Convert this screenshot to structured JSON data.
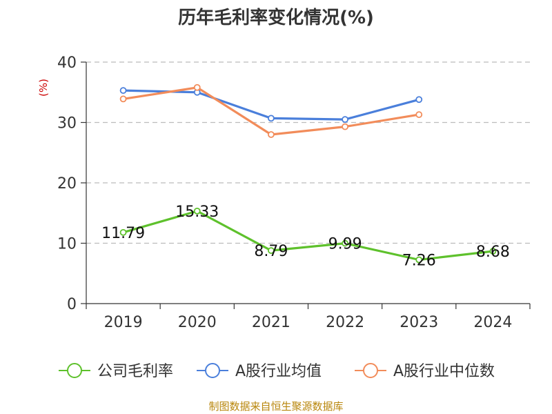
{
  "chart_data": {
    "type": "line",
    "title": "历年毛利率变化情况(%)",
    "ylabel": "(%)",
    "categories": [
      "2019",
      "2020",
      "2021",
      "2022",
      "2023",
      "2024"
    ],
    "ylim": [
      0,
      40
    ],
    "yticks": [
      0,
      10,
      20,
      30,
      40
    ],
    "grid": true,
    "legend_position": "bottom",
    "series": [
      {
        "name": "公司毛利率",
        "color": "#5ec12c",
        "values": [
          11.79,
          15.33,
          8.79,
          9.99,
          7.26,
          8.68
        ],
        "data_labels": [
          "11.79",
          "15.33",
          "8.79",
          "9.99",
          "7.26",
          "8.68"
        ]
      },
      {
        "name": "A股行业均值",
        "color": "#4a7fdb",
        "values": [
          35.3,
          35.0,
          30.7,
          30.5,
          33.8,
          null
        ]
      },
      {
        "name": "A股行业中位数",
        "color": "#f28c5a",
        "values": [
          33.9,
          35.8,
          28.0,
          29.3,
          31.3,
          null
        ]
      }
    ]
  },
  "source_text": "制图数据来自恒生聚源数据库"
}
